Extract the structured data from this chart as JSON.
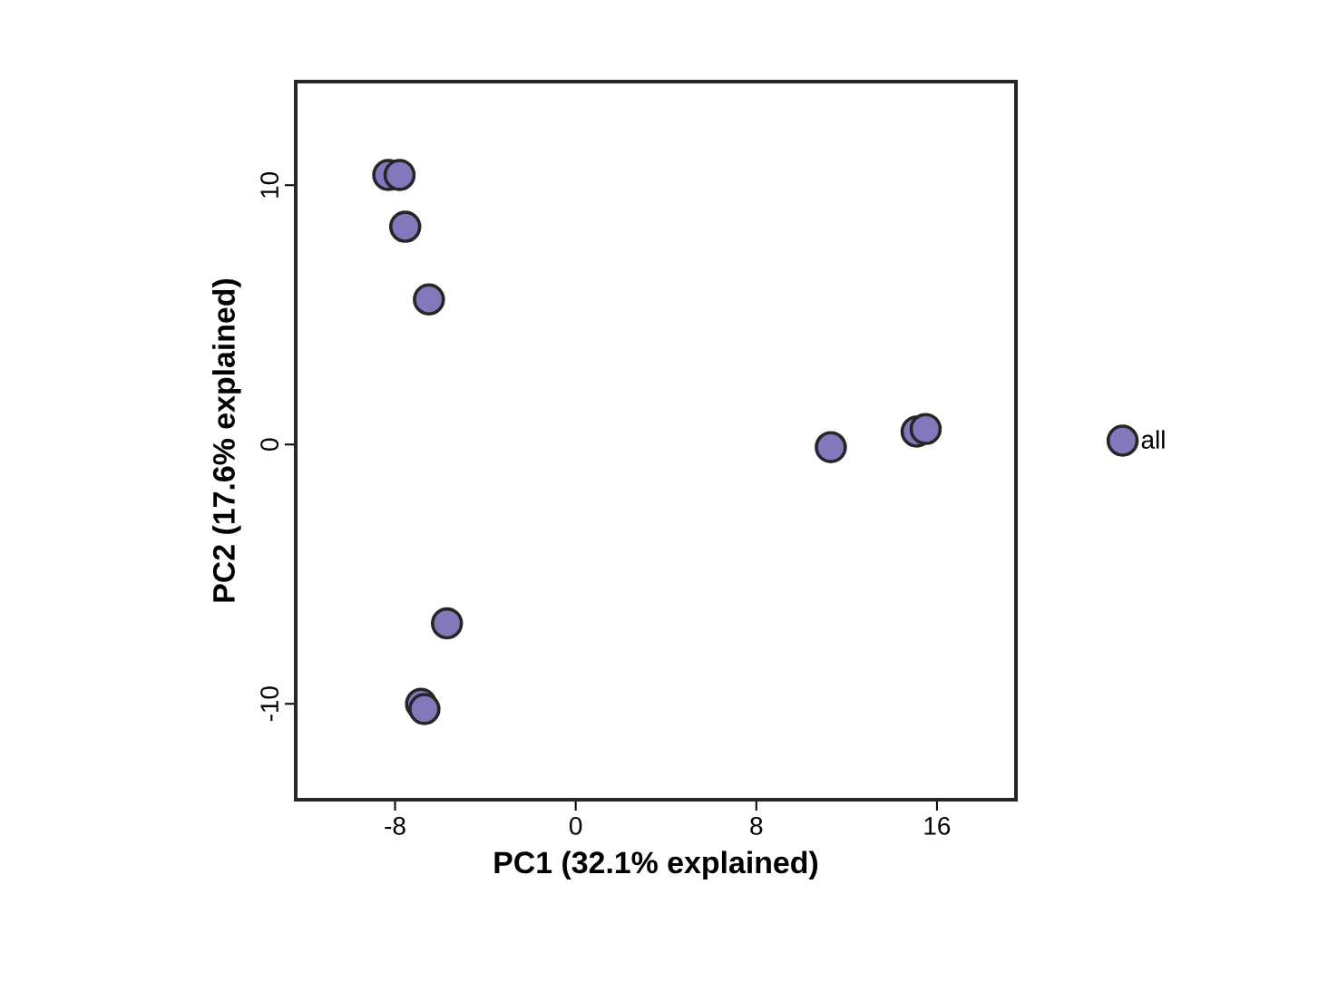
{
  "chart_data": {
    "type": "scatter",
    "xlabel": "PC1 (32.1% explained)",
    "ylabel": "PC2 (17.6% explained)",
    "xlim": [
      -12.4,
      19.5
    ],
    "ylim": [
      -13.7,
      14.0
    ],
    "xticks": [
      -8,
      0,
      8,
      16
    ],
    "yticks": [
      -10,
      0,
      10
    ],
    "grid": false,
    "legend": "right",
    "marker": "circle",
    "series": [
      {
        "name": "all",
        "color": "#8478bd",
        "x": [
          -8.3,
          -7.8,
          -7.55,
          -6.5,
          -5.7,
          -6.85,
          -6.7,
          11.3,
          15.1,
          15.5
        ],
        "values": [
          10.4,
          10.4,
          8.4,
          5.6,
          -6.9,
          -10.0,
          -10.2,
          -0.1,
          0.5,
          0.6
        ]
      }
    ]
  }
}
